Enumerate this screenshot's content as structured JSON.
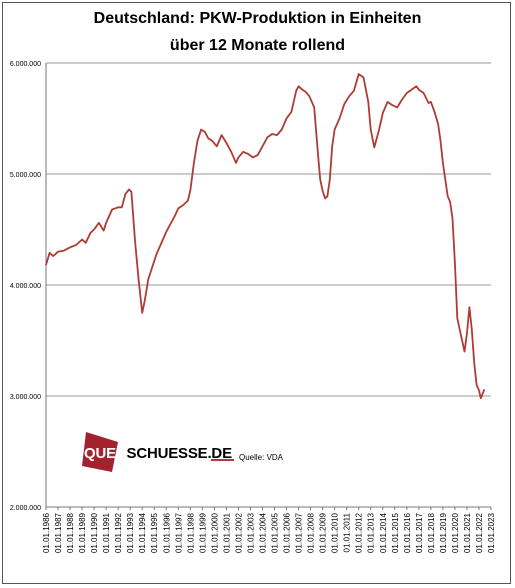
{
  "chart_data": {
    "type": "line",
    "title_line1": "Deutschland: PKW-Produktion  in Einheiten",
    "title_line2": "über 12 Monate rollend",
    "ylim": [
      2000000,
      6000000
    ],
    "yticks": [
      "2.000.000",
      "3.000.000",
      "4.000.000",
      "5.000.000",
      "6.000.000"
    ],
    "ytick_values": [
      2000000,
      3000000,
      4000000,
      5000000,
      6000000
    ],
    "xlim": [
      1986,
      2023
    ],
    "xticks": [
      "01.01.1986",
      "01.01.1987",
      "01.01.1988",
      "01.01.1989",
      "01.01.1990",
      "01.01.1991",
      "01.01.1992",
      "01.01.1993",
      "01.01.1994",
      "01.01.1995",
      "01.01.1996",
      "01.01.1997",
      "01.01.1998",
      "01.01.1999",
      "01.01.2000",
      "01.01.2001",
      "01.01.2002",
      "01.01.2003",
      "01.01.2004",
      "01.01.2005",
      "01.01.2006",
      "01.01.2007",
      "01.01.2008",
      "01.01.2009",
      "01.01.2010",
      "01.01.2011",
      "01.01.2012",
      "01.01.2013",
      "01.01.2014",
      "01.01.2015",
      "01.01.2016",
      "01.01.2017",
      "01.01.2018",
      "01.01.2019",
      "01.01.2020",
      "01.01.2021",
      "01.01.2022",
      "01.01.2023"
    ],
    "grid": "horizontal",
    "series": [
      {
        "name": "Quelle: VDA",
        "color": "#b03a34",
        "x": [
          1986.0,
          1986.3,
          1986.6,
          1987.0,
          1987.5,
          1988.0,
          1988.5,
          1989.0,
          1989.3,
          1989.7,
          1990.0,
          1990.4,
          1990.8,
          1991.0,
          1991.5,
          1992.0,
          1992.3,
          1992.6,
          1992.9,
          1993.1,
          1993.4,
          1993.7,
          1994.0,
          1994.2,
          1994.5,
          1994.8,
          1995.2,
          1995.6,
          1996.0,
          1996.4,
          1996.7,
          1997.0,
          1997.4,
          1997.8,
          1998.0,
          1998.3,
          1998.6,
          1998.9,
          1999.2,
          1999.5,
          1999.8,
          2000.2,
          2000.6,
          2001.0,
          2001.4,
          2001.8,
          2002.0,
          2002.4,
          2002.8,
          2003.2,
          2003.6,
          2004.0,
          2004.4,
          2004.8,
          2005.2,
          2005.6,
          2006.0,
          2006.4,
          2006.8,
          2007.0,
          2007.3,
          2007.6,
          2007.9,
          2008.3,
          2008.6,
          2008.8,
          2009.0,
          2009.2,
          2009.4,
          2009.6,
          2009.8,
          2010.0,
          2010.4,
          2010.8,
          2011.2,
          2011.6,
          2012.0,
          2012.4,
          2012.8,
          2013.0,
          2013.3,
          2013.7,
          2014.0,
          2014.4,
          2014.8,
          2015.2,
          2015.6,
          2016.0,
          2016.4,
          2016.8,
          2017.0,
          2017.4,
          2017.8,
          2018.0,
          2018.3,
          2018.6,
          2018.8,
          2019.0,
          2019.2,
          2019.4,
          2019.6,
          2019.8,
          2020.0,
          2020.2,
          2020.4,
          2020.6,
          2020.8,
          2021.0,
          2021.2,
          2021.4,
          2021.6,
          2021.8,
          2022.0,
          2022.15,
          2022.3,
          2022.45
        ],
        "values": [
          4180000,
          4290000,
          4260000,
          4300000,
          4310000,
          4340000,
          4360000,
          4410000,
          4380000,
          4470000,
          4500000,
          4560000,
          4490000,
          4560000,
          4680000,
          4700000,
          4700000,
          4820000,
          4860000,
          4840000,
          4400000,
          4050000,
          3750000,
          3850000,
          4050000,
          4150000,
          4280000,
          4380000,
          4480000,
          4560000,
          4620000,
          4690000,
          4720000,
          4760000,
          4850000,
          5100000,
          5300000,
          5400000,
          5380000,
          5320000,
          5300000,
          5250000,
          5350000,
          5280000,
          5200000,
          5100000,
          5150000,
          5200000,
          5180000,
          5150000,
          5170000,
          5250000,
          5330000,
          5360000,
          5350000,
          5400000,
          5500000,
          5560000,
          5750000,
          5790000,
          5760000,
          5740000,
          5700000,
          5600000,
          5200000,
          4950000,
          4850000,
          4780000,
          4800000,
          4950000,
          5250000,
          5400000,
          5500000,
          5630000,
          5700000,
          5750000,
          5900000,
          5870000,
          5650000,
          5400000,
          5240000,
          5400000,
          5550000,
          5650000,
          5620000,
          5600000,
          5670000,
          5730000,
          5760000,
          5790000,
          5760000,
          5730000,
          5640000,
          5650000,
          5560000,
          5450000,
          5300000,
          5100000,
          4950000,
          4800000,
          4750000,
          4600000,
          4200000,
          3700000,
          3600000,
          3500000,
          3400000,
          3560000,
          3800000,
          3600000,
          3300000,
          3100000,
          3050000,
          2980000,
          3020000,
          3060000
        ]
      }
    ]
  },
  "logo": {
    "part1": "QUER",
    "part2": "SCHUESSE.DE",
    "color": "#a4222f"
  },
  "legend": {
    "label": "Quelle: VDA"
  }
}
